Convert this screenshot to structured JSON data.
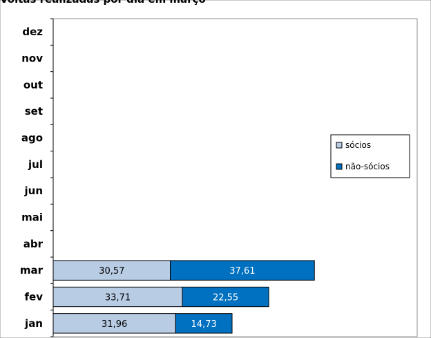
{
  "chart_data": {
    "type": "bar",
    "orientation": "horizontal",
    "stacked": true,
    "title": "Voltas realizadas por dia em março",
    "categories": [
      "jan",
      "fev",
      "mar",
      "abr",
      "mai",
      "jun",
      "jul",
      "ago",
      "set",
      "out",
      "nov",
      "dez"
    ],
    "series": [
      {
        "name": "sócios",
        "color": "#b8cce4",
        "values": [
          31.96,
          33.71,
          30.57,
          null,
          null,
          null,
          null,
          null,
          null,
          null,
          null,
          null
        ]
      },
      {
        "name": "não-sócios",
        "color": "#0070c0",
        "values": [
          14.73,
          22.55,
          37.61,
          null,
          null,
          null,
          null,
          null,
          null,
          null,
          null,
          null
        ]
      }
    ],
    "value_labels": [
      "31,96",
      "14,73",
      "33,71",
      "22,55",
      "30,57",
      "37,61"
    ],
    "xlim": [
      0,
      95
    ],
    "grid": false,
    "legend": "right"
  }
}
